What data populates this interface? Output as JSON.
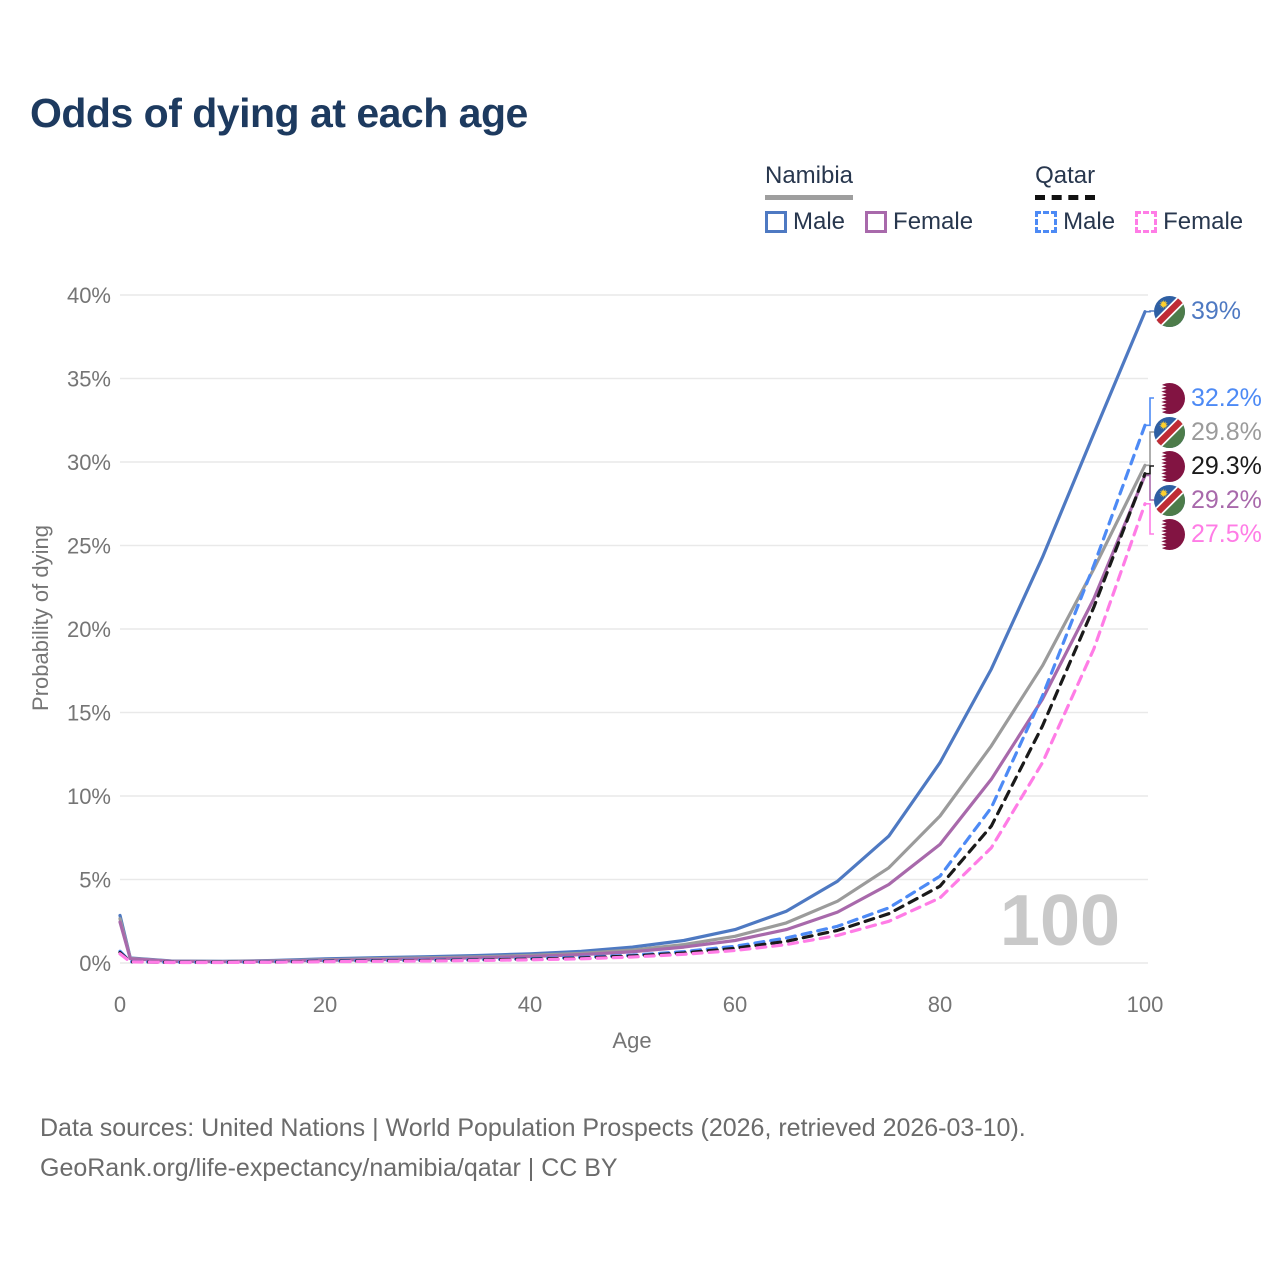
{
  "title": "Odds of dying at each age",
  "legend": {
    "groups": [
      {
        "name": "Namibia",
        "underline_style": "solid",
        "underline_color": "#9e9e9e",
        "items": [
          {
            "label": "Male",
            "series": "namibia-male",
            "swatch": "solid"
          },
          {
            "label": "Female",
            "series": "namibia-female",
            "swatch": "solid"
          }
        ]
      },
      {
        "name": "Qatar",
        "underline_style": "dashed",
        "underline_color": "#111111",
        "items": [
          {
            "label": "Male",
            "series": "qatar-male",
            "swatch": "dashed"
          },
          {
            "label": "Female",
            "series": "qatar-female",
            "swatch": "dashed"
          }
        ]
      }
    ]
  },
  "y_axis": {
    "label": "Probability of dying",
    "ticks": [
      "0%",
      "5%",
      "10%",
      "15%",
      "20%",
      "25%",
      "30%",
      "35%",
      "40%"
    ]
  },
  "x_axis": {
    "label": "Age",
    "ticks": [
      "0",
      "20",
      "40",
      "60",
      "80",
      "100"
    ]
  },
  "watermark": "100",
  "end_labels": [
    {
      "text": "39%",
      "flag": "namibia",
      "series": "namibia-male"
    },
    {
      "text": "32.2%",
      "flag": "qatar",
      "series": "qatar-male"
    },
    {
      "text": "29.8%",
      "flag": "namibia",
      "series": "namibia-both"
    },
    {
      "text": "29.3%",
      "flag": "qatar",
      "series": "qatar-both"
    },
    {
      "text": "29.2%",
      "flag": "namibia",
      "series": "namibia-female"
    },
    {
      "text": "27.5%",
      "flag": "qatar",
      "series": "qatar-female"
    }
  ],
  "flags": {
    "namibia": {
      "blue": "#2e5fa3",
      "red": "#bf2c35",
      "green": "#4d7c4a",
      "gold": "#ffd02c",
      "white": "#ffffff"
    },
    "qatar": {
      "maroon": "#821442",
      "white": "#ffffff"
    }
  },
  "footer": {
    "line1": "Data sources: United Nations | World Population Prospects (2026, retrieved 2026-03-10).",
    "line2": "GeoRank.org/life-expectancy/namibia/qatar | CC BY"
  },
  "chart_data": {
    "type": "line",
    "title": "Odds of dying at each age",
    "xlabel": "Age",
    "ylabel": "Probability of dying",
    "xlim": [
      0,
      100
    ],
    "ylim": [
      0,
      40
    ],
    "y_unit": "%",
    "grid": true,
    "legend_position": "top-right",
    "x": [
      0,
      1,
      5,
      10,
      15,
      20,
      25,
      30,
      35,
      40,
      45,
      50,
      55,
      60,
      65,
      70,
      75,
      80,
      85,
      90,
      95,
      100
    ],
    "series": [
      {
        "id": "namibia-male",
        "name": "Namibia Male",
        "style": "solid",
        "color": "#4e79c2",
        "values": [
          2.85,
          0.3,
          0.12,
          0.1,
          0.15,
          0.25,
          0.32,
          0.38,
          0.45,
          0.55,
          0.7,
          0.95,
          1.35,
          2.0,
          3.1,
          4.9,
          7.6,
          12.0,
          17.6,
          24.3,
          31.7,
          39.0
        ],
        "end_value": 39.0
      },
      {
        "id": "namibia-both",
        "name": "Namibia",
        "style": "solid",
        "color": "#9b9b9b",
        "values": [
          2.65,
          0.28,
          0.11,
          0.09,
          0.13,
          0.2,
          0.26,
          0.31,
          0.37,
          0.46,
          0.58,
          0.78,
          1.1,
          1.6,
          2.4,
          3.7,
          5.7,
          8.8,
          13.0,
          17.8,
          23.6,
          29.8
        ],
        "end_value": 29.8
      },
      {
        "id": "namibia-female",
        "name": "Namibia Female",
        "style": "solid",
        "color": "#a869ab",
        "values": [
          2.45,
          0.26,
          0.1,
          0.08,
          0.11,
          0.16,
          0.2,
          0.25,
          0.31,
          0.39,
          0.5,
          0.67,
          0.95,
          1.35,
          2.0,
          3.05,
          4.7,
          7.1,
          11.0,
          15.8,
          21.8,
          29.2
        ],
        "end_value": 29.2
      },
      {
        "id": "qatar-male",
        "name": "Qatar Male",
        "style": "dashed",
        "color": "#4d8af5",
        "values": [
          0.7,
          0.08,
          0.04,
          0.04,
          0.07,
          0.12,
          0.15,
          0.17,
          0.2,
          0.26,
          0.34,
          0.47,
          0.68,
          1.0,
          1.5,
          2.2,
          3.3,
          5.2,
          9.3,
          16.0,
          23.8,
          32.2
        ],
        "end_value": 32.2
      },
      {
        "id": "qatar-both",
        "name": "Qatar",
        "style": "dashed",
        "color": "#1a1a1a",
        "values": [
          0.62,
          0.07,
          0.04,
          0.04,
          0.06,
          0.1,
          0.13,
          0.15,
          0.18,
          0.23,
          0.3,
          0.42,
          0.6,
          0.88,
          1.3,
          1.95,
          2.95,
          4.6,
          8.2,
          14.2,
          21.3,
          29.3
        ],
        "end_value": 29.3
      },
      {
        "id": "qatar-female",
        "name": "Qatar Female",
        "style": "dashed",
        "color": "#ff7ce6",
        "values": [
          0.55,
          0.07,
          0.03,
          0.03,
          0.05,
          0.08,
          0.1,
          0.12,
          0.15,
          0.19,
          0.25,
          0.36,
          0.52,
          0.75,
          1.1,
          1.65,
          2.5,
          3.9,
          6.9,
          12.0,
          18.8,
          27.5
        ],
        "end_value": 27.5
      }
    ]
  }
}
